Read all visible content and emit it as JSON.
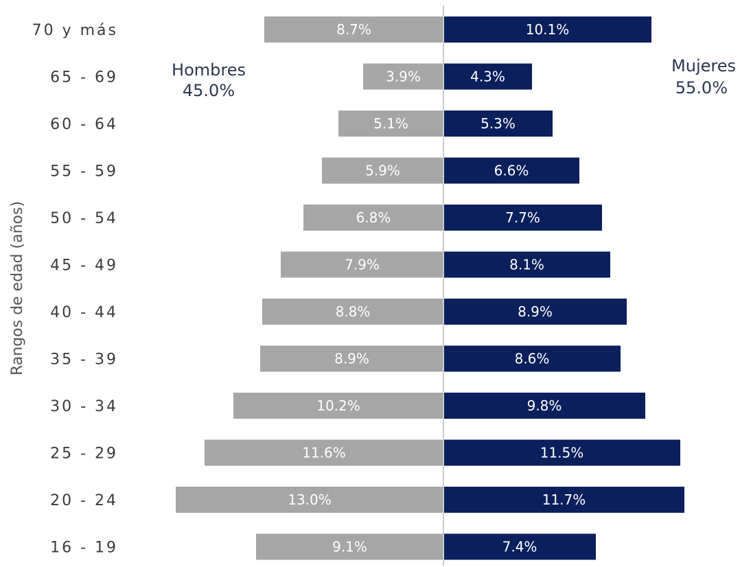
{
  "chart_data": {
    "type": "bar",
    "orientation": "horizontal",
    "categories": [
      "70 y más",
      "65 - 69",
      "60 - 64",
      "55 - 59",
      "50 - 54",
      "45 - 49",
      "40 - 44",
      "35 - 39",
      "30 - 34",
      "25 - 29",
      "20 - 24",
      "16 - 19"
    ],
    "series": [
      {
        "name": "Hombres",
        "total_label": "45.0%",
        "color": "#a6a6a6",
        "values": [
          8.7,
          3.9,
          5.1,
          5.9,
          6.8,
          7.9,
          8.8,
          8.9,
          10.2,
          11.6,
          13.0,
          9.1
        ],
        "value_labels": [
          "8.7%",
          "3.9%",
          "5.1%",
          "5.9%",
          "6.8%",
          "7.9%",
          "8.8%",
          "8.9%",
          "10.2%",
          "11.6%",
          "13.0%",
          "9.1%"
        ]
      },
      {
        "name": "Mujeres",
        "total_label": "55.0%",
        "color": "#0b1f5c",
        "values": [
          10.1,
          4.3,
          5.3,
          6.6,
          7.7,
          8.1,
          8.9,
          8.6,
          9.8,
          11.5,
          11.7,
          7.4
        ],
        "value_labels": [
          "10.1%",
          "4.3%",
          "5.3%",
          "6.6%",
          "7.7%",
          "8.1%",
          "8.9%",
          "8.6%",
          "9.8%",
          "11.5%",
          "11.7%",
          "7.4%"
        ]
      }
    ],
    "ylabel": "Rangos de edad (años)",
    "xlabel": "",
    "title": "",
    "grid": false,
    "center_line_color": "#cccccc"
  }
}
